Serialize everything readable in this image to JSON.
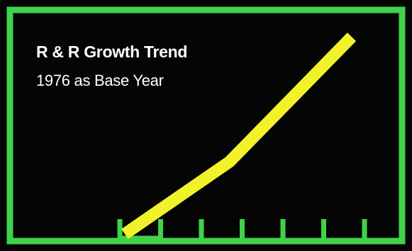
{
  "colors": {
    "background": "#050505",
    "frame": "#3fd24a",
    "line": "#f2f22a",
    "text": "#ffffff"
  },
  "chart_data": {
    "type": "line",
    "title": "R & R Growth Trend",
    "subtitle": "1976 as Base Year",
    "x": [
      0,
      3,
      6.5
    ],
    "y": [
      0,
      4.4,
      12
    ],
    "xlim": [
      0,
      6.5
    ],
    "ylim": [
      0,
      12
    ],
    "tick_count": 7,
    "grid": false,
    "legend": "none"
  }
}
